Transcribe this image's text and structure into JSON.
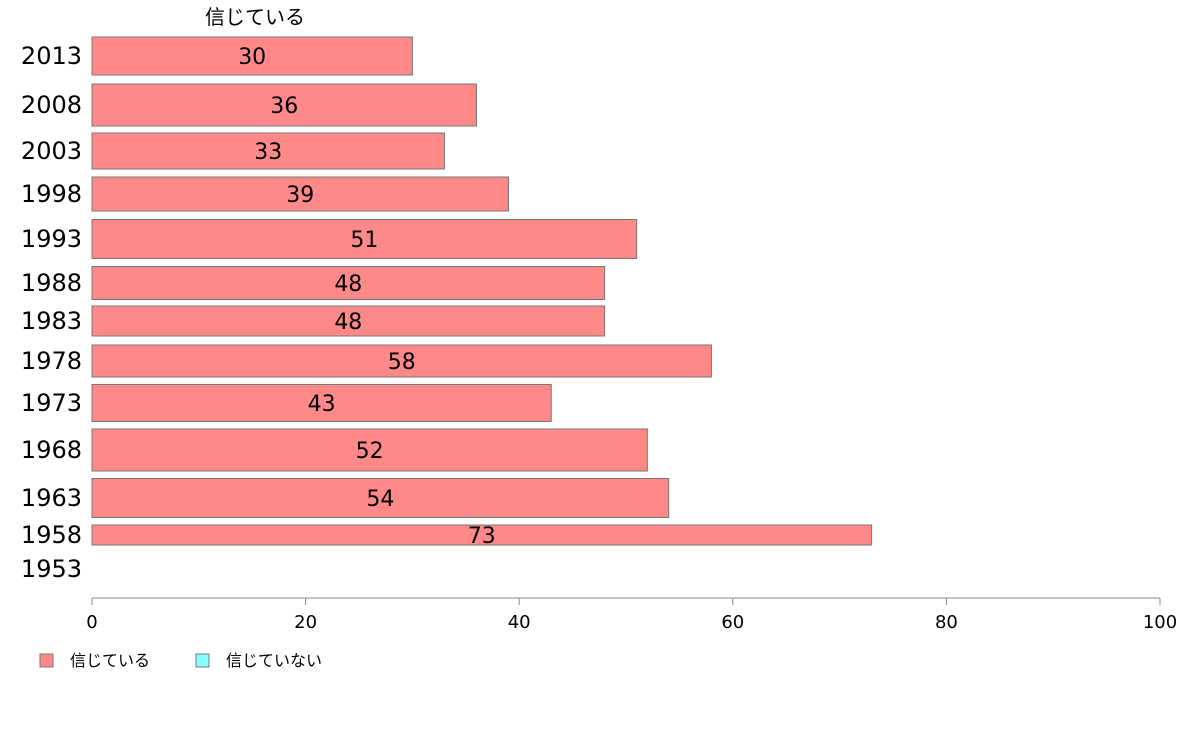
{
  "chart_data": {
    "type": "bar",
    "orientation": "horizontal",
    "title": "信じている",
    "categories": [
      "2013",
      "2008",
      "2003",
      "1998",
      "1993",
      "1988",
      "1983",
      "1978",
      "1973",
      "1968",
      "1963",
      "1958",
      "1953"
    ],
    "series": [
      {
        "name": "信じている",
        "color": "#ff8888",
        "values": [
          30,
          36,
          33,
          39,
          51,
          48,
          48,
          58,
          43,
          52,
          54,
          73,
          null
        ],
        "data_labels": [
          "30",
          "36",
          "33",
          "39",
          "51",
          "48",
          "48",
          "58",
          "43",
          "52",
          "54",
          "73",
          ""
        ]
      },
      {
        "name": "信じていない",
        "color": "#88ffff",
        "values": [
          null,
          null,
          null,
          null,
          null,
          null,
          null,
          null,
          null,
          null,
          null,
          null,
          null
        ]
      }
    ],
    "xlim": [
      0,
      100
    ],
    "xticks": [
      0,
      20,
      40,
      60,
      80,
      100
    ],
    "xtick_labels": [
      "0",
      "20",
      "40",
      "60",
      "80",
      "100"
    ],
    "grid": false,
    "legend_position": "bottom-left"
  }
}
